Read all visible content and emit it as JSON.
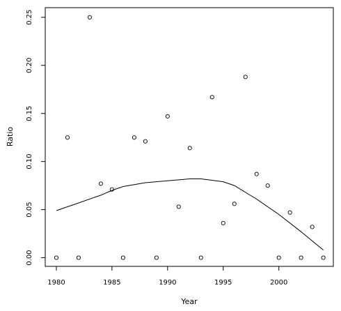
{
  "chart_data": {
    "type": "scatter",
    "xlabel": "Year",
    "ylabel": "Ratio",
    "xlim": [
      1979.0,
      2004.9
    ],
    "ylim": [
      -0.009,
      0.26
    ],
    "xticks": [
      1980,
      1985,
      1990,
      1995,
      2000
    ],
    "xtick_labels": [
      "1980",
      "1985",
      "1990",
      "1995",
      "2000"
    ],
    "yticks": [
      0.0,
      0.05,
      0.1,
      0.15,
      0.2,
      0.25
    ],
    "ytick_labels": [
      "0.00",
      "0.05",
      "0.10",
      "0.15",
      "0.20",
      "0.25"
    ],
    "grid": false,
    "series": [
      {
        "kind": "points",
        "x": [
          1980,
          1981,
          1982,
          1983,
          1984,
          1985,
          1986,
          1987,
          1988,
          1989,
          1990,
          1991,
          1992,
          1993,
          1994,
          1995,
          1996,
          1997,
          1998,
          1999,
          2000,
          2001,
          2002,
          2003,
          2004
        ],
        "y": [
          0.0,
          0.125,
          0.0,
          0.25,
          0.077,
          0.071,
          0.0,
          0.125,
          0.121,
          0.0,
          0.147,
          0.053,
          0.114,
          0.0,
          0.167,
          0.036,
          0.056,
          0.188,
          0.087,
          0.075,
          0.0,
          0.047,
          0.0,
          0.032,
          0.0
        ]
      },
      {
        "kind": "line",
        "x": [
          1980,
          1982,
          1984,
          1985,
          1986,
          1988,
          1990,
          1992,
          1993,
          1995,
          1996,
          1998,
          2000,
          2002,
          2004
        ],
        "y": [
          0.049,
          0.057,
          0.065,
          0.07,
          0.074,
          0.078,
          0.08,
          0.082,
          0.082,
          0.079,
          0.075,
          0.061,
          0.045,
          0.027,
          0.008
        ]
      }
    ]
  }
}
